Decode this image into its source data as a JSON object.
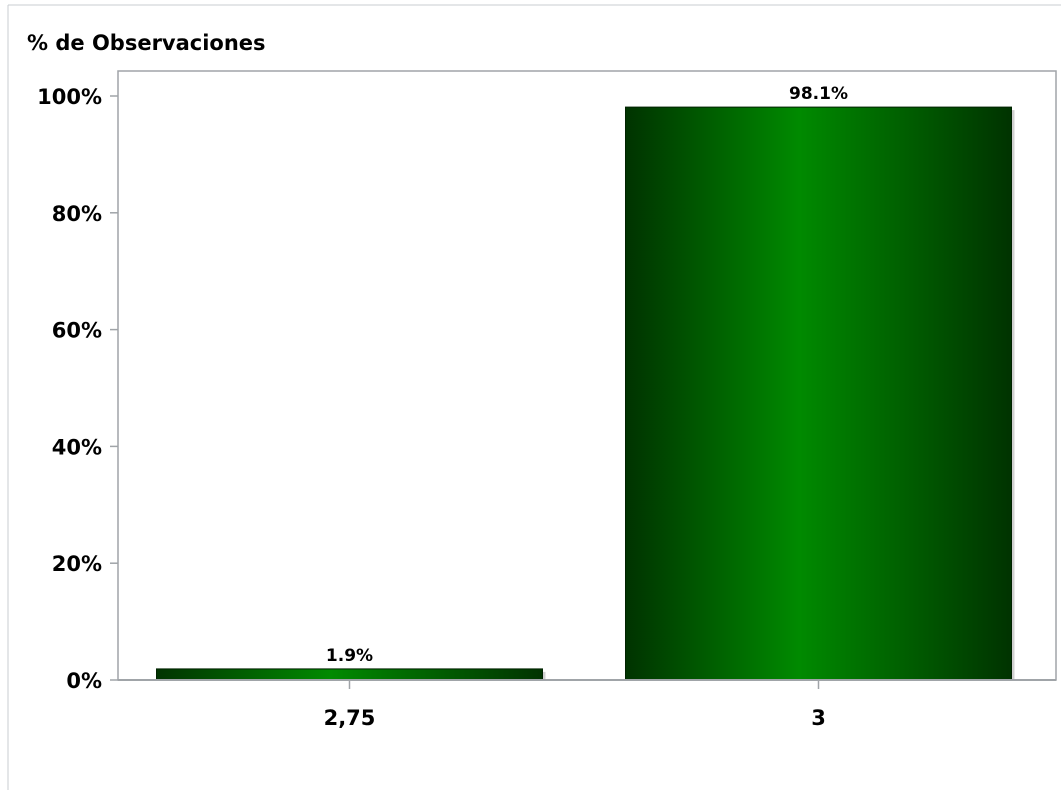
{
  "chart_data": {
    "type": "bar",
    "title": "",
    "ylabel": "% de Observaciones",
    "xlabel": "",
    "categories": [
      "2,75",
      "3"
    ],
    "values": [
      1.9,
      98.1
    ],
    "data_labels": [
      "1.9%",
      "98.1%"
    ],
    "ylim": [
      0,
      100
    ],
    "yticks": [
      0,
      20,
      40,
      60,
      80,
      100
    ],
    "ytick_labels": [
      "0%",
      "20%",
      "40%",
      "60%",
      "80%",
      "100%"
    ],
    "grid": false,
    "legend": "none",
    "colors": {
      "bar_dark": "#003300",
      "bar_light": "#008a00",
      "axis": "#a0a4a8"
    }
  }
}
